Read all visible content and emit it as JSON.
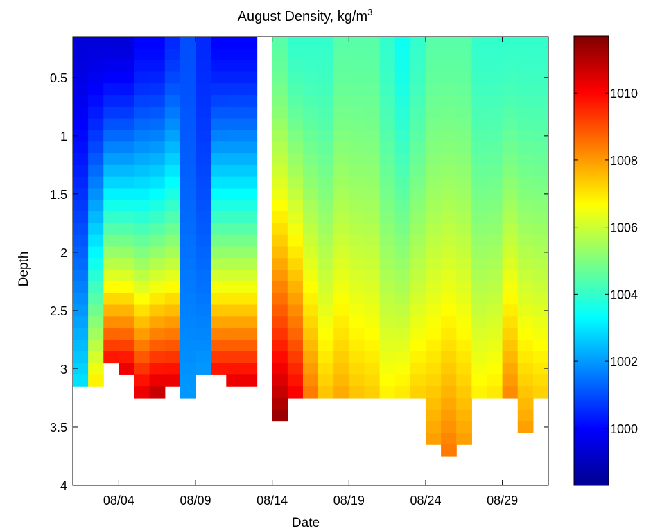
{
  "chart_data": {
    "type": "heatmap",
    "title": {
      "main": "August Density, kg/m",
      "superscript": "3"
    },
    "xlabel": "Date",
    "ylabel": "Depth",
    "x_range": [
      "08/01",
      "08/32"
    ],
    "x_ticks": [
      "08/04",
      "08/09",
      "08/14",
      "08/19",
      "08/24",
      "08/29"
    ],
    "y_ticks": [
      "0.5",
      "1",
      "1.5",
      "2",
      "2.5",
      "3",
      "3.5",
      "4"
    ],
    "ylim": [
      0.15,
      4
    ],
    "y_reversed": true,
    "colorbar": {
      "ticks": [
        "1000",
        "1002",
        "1004",
        "1006",
        "1008",
        "1010"
      ],
      "range": [
        998.3,
        1011.7
      ],
      "colormap": "jet"
    },
    "data_gap": [
      "08/13",
      "08/14"
    ],
    "columns_surface_to_bottom": [
      {
        "date": "08/01",
        "bottom_depth": 3.1,
        "surface": 999.5,
        "deep": 1003.0
      },
      {
        "date": "08/02",
        "bottom_depth": 3.1,
        "surface": 999.5,
        "deep": 1007.0
      },
      {
        "date": "08/03",
        "bottom_depth": 2.9,
        "surface": 999.5,
        "deep": 1010.0
      },
      {
        "date": "08/04",
        "bottom_depth": 3.0,
        "surface": 999.5,
        "deep": 1010.5
      },
      {
        "date": "08/05",
        "bottom_depth": 3.3,
        "surface": 1000.0,
        "deep": 1011.0
      },
      {
        "date": "08/06",
        "bottom_depth": 3.2,
        "surface": 1000.0,
        "deep": 1011.0
      },
      {
        "date": "08/07",
        "bottom_depth": 3.1,
        "surface": 1000.5,
        "deep": 1010.5
      },
      {
        "date": "08/08",
        "bottom_depth": 3.2,
        "surface": 1001.0,
        "deep": 1002.0
      },
      {
        "date": "08/09",
        "bottom_depth": 3.0,
        "surface": 1000.5,
        "deep": 1002.0
      },
      {
        "date": "08/10",
        "bottom_depth": 3.0,
        "surface": 1000.0,
        "deep": 1010.0
      },
      {
        "date": "08/11",
        "bottom_depth": 3.1,
        "surface": 1000.0,
        "deep": 1010.5
      },
      {
        "date": "08/12",
        "bottom_depth": 3.1,
        "surface": 1000.0,
        "deep": 1010.5
      },
      {
        "date": "08/14",
        "bottom_depth": 3.4,
        "surface": 1004.5,
        "deep": 1011.5
      },
      {
        "date": "08/15",
        "bottom_depth": 3.3,
        "surface": 1004.0,
        "deep": 1010.5
      },
      {
        "date": "08/16",
        "bottom_depth": 3.2,
        "surface": 1004.0,
        "deep": 1008.5
      },
      {
        "date": "08/17",
        "bottom_depth": 3.2,
        "surface": 1004.0,
        "deep": 1007.5
      },
      {
        "date": "08/18",
        "bottom_depth": 3.3,
        "surface": 1004.5,
        "deep": 1008.0
      },
      {
        "date": "08/19",
        "bottom_depth": 3.2,
        "surface": 1004.5,
        "deep": 1007.5
      },
      {
        "date": "08/20",
        "bottom_depth": 3.3,
        "surface": 1004.5,
        "deep": 1007.5
      },
      {
        "date": "08/21",
        "bottom_depth": 3.3,
        "surface": 1004.0,
        "deep": 1007.0
      },
      {
        "date": "08/22",
        "bottom_depth": 3.2,
        "surface": 1003.5,
        "deep": 1007.0
      },
      {
        "date": "08/23",
        "bottom_depth": 3.3,
        "surface": 1004.0,
        "deep": 1007.5
      },
      {
        "date": "08/24",
        "bottom_depth": 3.6,
        "surface": 1004.5,
        "deep": 1008.0
      },
      {
        "date": "08/25",
        "bottom_depth": 3.7,
        "surface": 1004.5,
        "deep": 1008.5
      },
      {
        "date": "08/26",
        "bottom_depth": 3.6,
        "surface": 1004.5,
        "deep": 1008.0
      },
      {
        "date": "08/27",
        "bottom_depth": 3.3,
        "surface": 1004.0,
        "deep": 1007.0
      },
      {
        "date": "08/28",
        "bottom_depth": 3.2,
        "surface": 1004.0,
        "deep": 1007.0
      },
      {
        "date": "08/29",
        "bottom_depth": 3.3,
        "surface": 1004.0,
        "deep": 1008.5
      },
      {
        "date": "08/30",
        "bottom_depth": 3.5,
        "surface": 1004.0,
        "deep": 1008.0
      },
      {
        "date": "08/31",
        "bottom_depth": 3.3,
        "surface": 1004.0,
        "deep": 1007.5
      }
    ]
  }
}
